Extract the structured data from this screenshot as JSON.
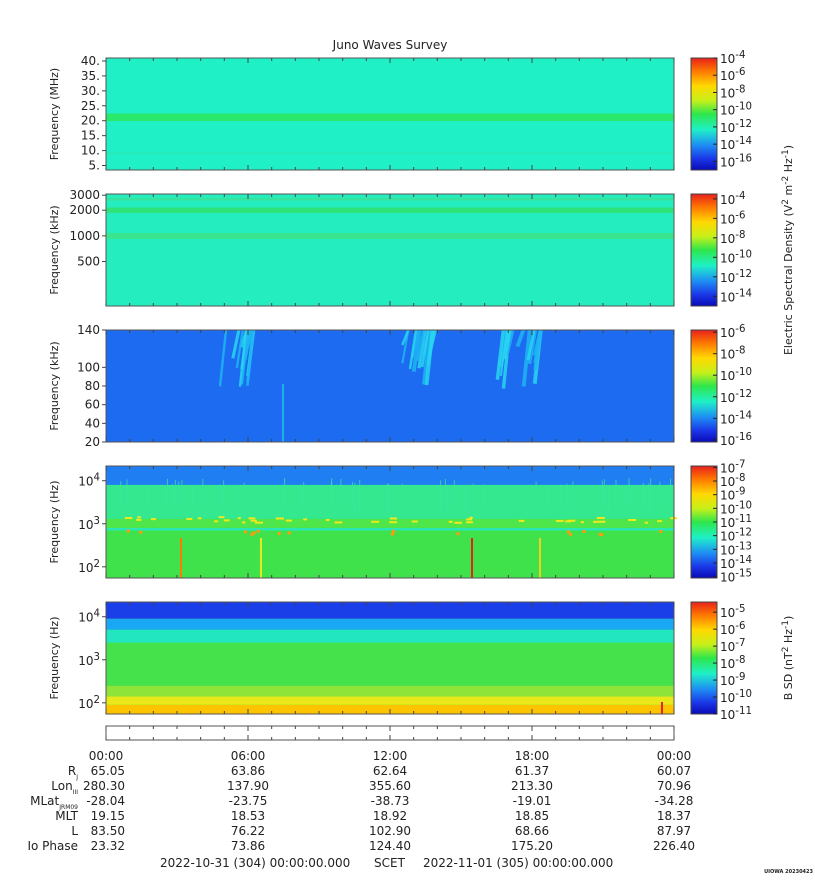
{
  "chart_data": {
    "type": "heatmap",
    "title": "Juno Waves Survey",
    "panels": [
      {
        "id": "p1",
        "ylabel": "Frequency (MHz)",
        "y_scale": "linear",
        "ylim": [
          3.5,
          41
        ],
        "y_ticks": [
          {
            "value": 40,
            "label": "40."
          },
          {
            "value": 35,
            "label": "35."
          },
          {
            "value": 30,
            "label": "30."
          },
          {
            "value": 25,
            "label": "25."
          },
          {
            "value": 20,
            "label": "20."
          },
          {
            "value": 15,
            "label": "15."
          },
          {
            "value": 10,
            "label": "10."
          },
          {
            "value": 5,
            "label": "5."
          }
        ],
        "bands": [
          {
            "from": 19.9,
            "to": 22.4,
            "color": "#29e86a"
          },
          {
            "from": 8.9,
            "to": 9.3,
            "color": "#2ce6b0"
          }
        ],
        "base_color": "#1ff0c6",
        "colorbar": {
          "ticks": [
            {
              "exp": "-4",
              "value": -4
            },
            {
              "exp": "-6",
              "value": -6
            },
            {
              "exp": "-8",
              "value": -8
            },
            {
              "exp": "-10",
              "value": -10
            },
            {
              "exp": "-12",
              "value": -12
            },
            {
              "exp": "-14",
              "value": -14
            },
            {
              "exp": "-16",
              "value": -16
            }
          ],
          "range": [
            -17,
            -4
          ]
        }
      },
      {
        "id": "p2",
        "ylabel": "Frequency (kHz)",
        "y_scale": "log",
        "ylim": [
          150,
          3100
        ],
        "y_ticks": [
          {
            "value": 3000,
            "label": "3000"
          },
          {
            "value": 2000,
            "label": "2000"
          },
          {
            "value": 1000,
            "label": "1000"
          },
          {
            "value": 500,
            "label": "500"
          }
        ],
        "bands": [
          {
            "from": 1850,
            "to": 2150,
            "color": "#2ee37a"
          },
          {
            "from": 920,
            "to": 1080,
            "color": "#39e48c"
          },
          {
            "from": 2600,
            "to": 2800,
            "color": "#36e3a0"
          }
        ],
        "base_color": "#24eec0",
        "colorbar": {
          "ticks": [
            {
              "exp": "-4",
              "value": -4
            },
            {
              "exp": "-6",
              "value": -6
            },
            {
              "exp": "-8",
              "value": -8
            },
            {
              "exp": "-10",
              "value": -10
            },
            {
              "exp": "-12",
              "value": -12
            },
            {
              "exp": "-14",
              "value": -14
            }
          ],
          "range": [
            -15,
            -3.5
          ]
        }
      },
      {
        "id": "p3",
        "ylabel": "Frequency (kHz)",
        "y_scale": "linear",
        "ylim": [
          20,
          140
        ],
        "y_ticks": [
          {
            "value": 140,
            "label": "140"
          },
          {
            "value": 100,
            "label": "100"
          },
          {
            "value": 80,
            "label": "80"
          },
          {
            "value": 60,
            "label": "60"
          },
          {
            "value": 40,
            "label": "40"
          },
          {
            "value": 20,
            "label": "20"
          }
        ],
        "base_color": "#1d6bf0",
        "colorbar": {
          "ticks": [
            {
              "exp": "-6",
              "value": -6
            },
            {
              "exp": "-8",
              "value": -8
            },
            {
              "exp": "-10",
              "value": -10
            },
            {
              "exp": "-12",
              "value": -12
            },
            {
              "exp": "-14",
              "value": -14
            },
            {
              "exp": "-16",
              "value": -16
            }
          ],
          "range": [
            -16.2,
            -5.8
          ]
        }
      },
      {
        "id": "p4",
        "ylabel": "Frequency (Hz)",
        "y_scale": "log",
        "ylim": [
          55,
          22000
        ],
        "y_ticks": [
          {
            "value": 10000,
            "base": "10",
            "exp": "4"
          },
          {
            "value": 1000,
            "base": "10",
            "exp": "3"
          },
          {
            "value": 100,
            "base": "10",
            "exp": "2"
          }
        ],
        "bands": [
          {
            "from": 55,
            "to": 700,
            "color": "#3fe24a"
          },
          {
            "from": 700,
            "to": 800,
            "color": "#28e8b8"
          },
          {
            "from": 800,
            "to": 1300,
            "color": "#4ee64a"
          },
          {
            "from": 1300,
            "to": 8000,
            "color": "#33e88f"
          },
          {
            "from": 8000,
            "to": 22000,
            "color": "#1f7ff2"
          }
        ],
        "base_color": "#3fe24a",
        "colorbar": {
          "ticks": [
            {
              "exp": "-7",
              "value": -7
            },
            {
              "exp": "-8",
              "value": -8
            },
            {
              "exp": "-9",
              "value": -9
            },
            {
              "exp": "-10",
              "value": -10
            },
            {
              "exp": "-11",
              "value": -11
            },
            {
              "exp": "-12",
              "value": -12
            },
            {
              "exp": "-13",
              "value": -13
            },
            {
              "exp": "-14",
              "value": -14
            },
            {
              "exp": "-15",
              "value": -15
            }
          ],
          "range": [
            -15.1,
            -6.9
          ]
        }
      },
      {
        "id": "p5",
        "ylabel": "Frequency (Hz)",
        "y_scale": "log",
        "ylim": [
          55,
          22000
        ],
        "y_ticks": [
          {
            "value": 10000,
            "base": "10",
            "exp": "4"
          },
          {
            "value": 1000,
            "base": "10",
            "exp": "3"
          },
          {
            "value": 100,
            "base": "10",
            "exp": "2"
          }
        ],
        "bands": [
          {
            "from": 55,
            "to": 90,
            "color": "#ffc400"
          },
          {
            "from": 90,
            "to": 140,
            "color": "#e8e81a"
          },
          {
            "from": 140,
            "to": 250,
            "color": "#8fe43a"
          },
          {
            "from": 250,
            "to": 2500,
            "color": "#45e24c"
          },
          {
            "from": 2500,
            "to": 5000,
            "color": "#22e6c0"
          },
          {
            "from": 5000,
            "to": 9000,
            "color": "#1aa8f4"
          },
          {
            "from": 9000,
            "to": 22000,
            "color": "#1a3fe8"
          }
        ],
        "base_color": "#45e24c",
        "colorbar": {
          "ticks": [
            {
              "exp": "-5",
              "value": -5
            },
            {
              "exp": "-6",
              "value": -6
            },
            {
              "exp": "-7",
              "value": -7
            },
            {
              "exp": "-8",
              "value": -8
            },
            {
              "exp": "-9",
              "value": -9
            },
            {
              "exp": "-10",
              "value": -10
            },
            {
              "exp": "-11",
              "value": -11
            }
          ],
          "range": [
            -11,
            -4.4
          ]
        }
      }
    ],
    "colorbar_titles": [
      {
        "panels": [
          "p1",
          "p2",
          "p3"
        ],
        "text": "Electric Spectral Density (V",
        "sup1": "2",
        "mid": " m",
        "sup2": "-2",
        "mid2": " Hz",
        "sup3": "-1",
        "end": ")"
      },
      {
        "panels": [
          "p5"
        ],
        "text": "B SD (nT",
        "sup1": "2",
        "mid": " Hz",
        "sup2": "-1",
        "end": ")"
      }
    ],
    "x_ticks": [
      "00:00",
      "06:00",
      "12:00",
      "18:00",
      "00:00"
    ],
    "ephemeris": [
      {
        "label": "R",
        "sub": "J",
        "values": [
          "65.05",
          "63.86",
          "62.64",
          "61.37",
          "60.07"
        ]
      },
      {
        "label": "Lon",
        "sub": "III",
        "values": [
          "280.30",
          "137.90",
          "355.60",
          "213.30",
          "70.96"
        ]
      },
      {
        "label": "MLat",
        "sub": "JRM09",
        "values": [
          "-28.04",
          "-23.75",
          "-38.73",
          "-19.01",
          "-34.28"
        ]
      },
      {
        "label": "MLT",
        "sub": "",
        "values": [
          "19.15",
          "18.53",
          "18.92",
          "18.85",
          "18.37"
        ]
      },
      {
        "label": "L",
        "sub": "",
        "values": [
          "83.50",
          "76.22",
          "102.90",
          "68.66",
          "87.97"
        ]
      },
      {
        "label": "Io Phase",
        "sub": "",
        "values": [
          "23.32",
          "73.86",
          "124.40",
          "175.20",
          "226.40"
        ]
      }
    ],
    "footer": {
      "start": "2022-10-31 (304) 00:00:00.000",
      "scet": "SCET",
      "end": "2022-11-01 (305) 00:00:00.000"
    },
    "credit": "UIOWA 20230423"
  }
}
